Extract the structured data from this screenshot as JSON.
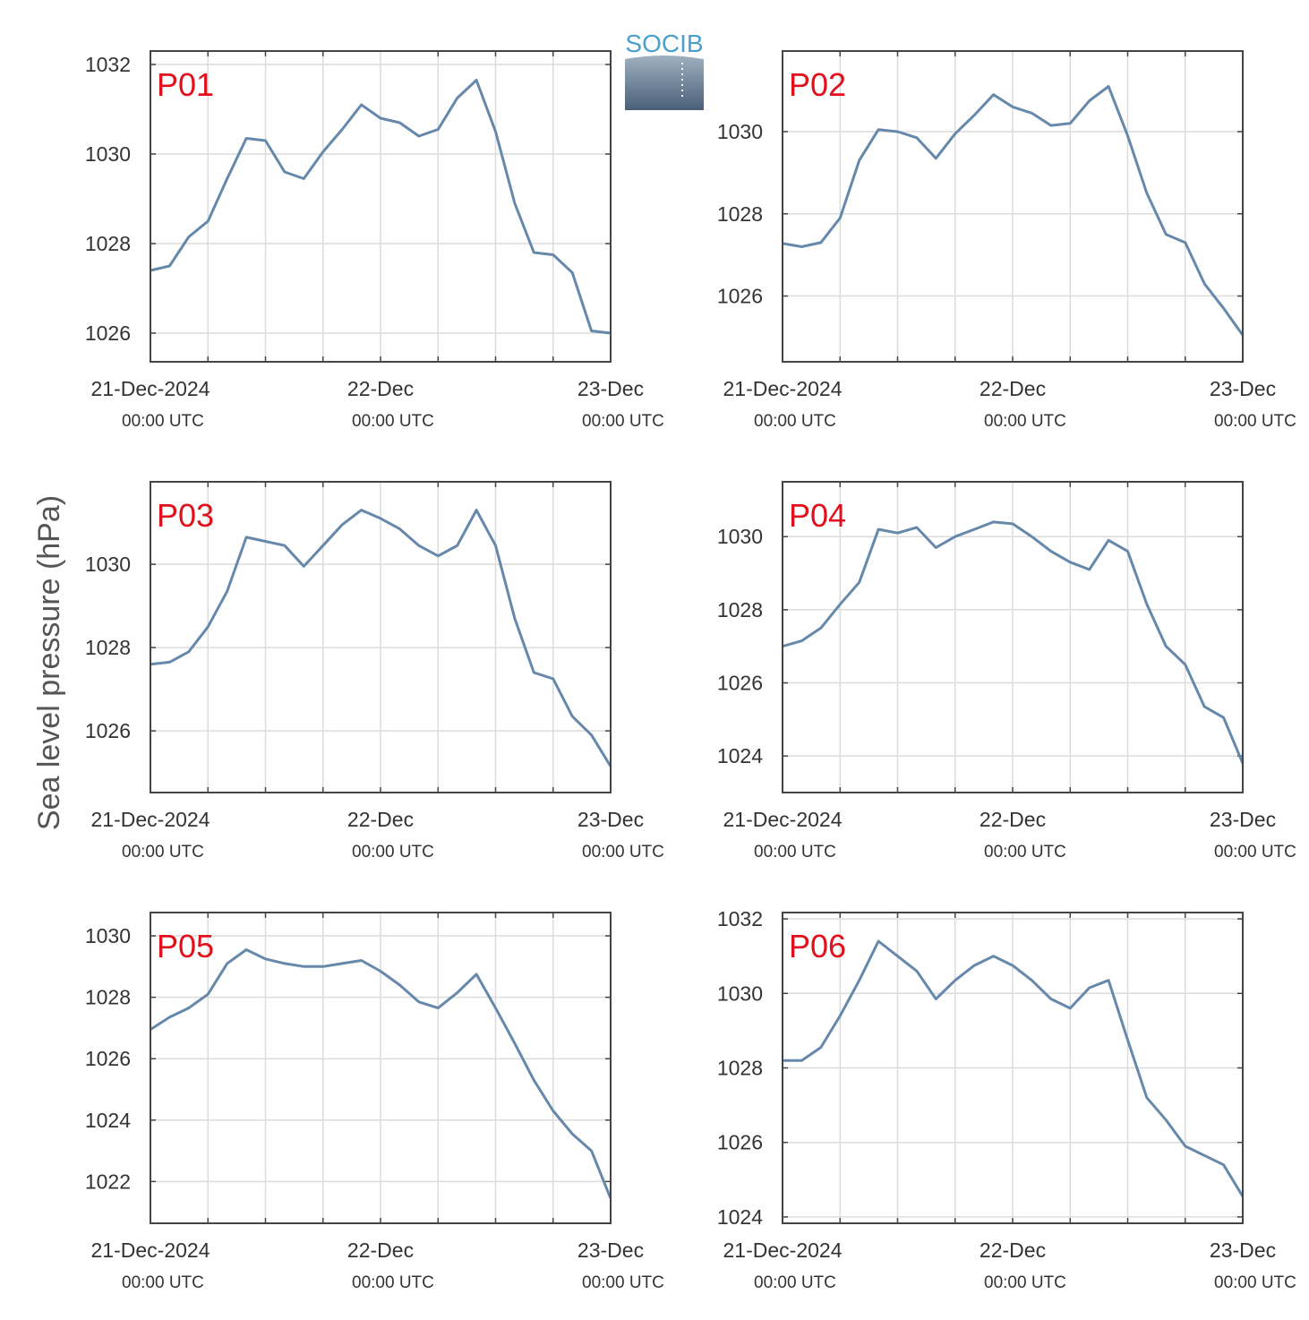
{
  "logo": "SOCIB",
  "ylabel": "Sea level pressure (hPa)",
  "chart_data": [
    {
      "type": "line",
      "title": "P01",
      "color": "#6688aa",
      "grid": true,
      "x": [
        "2024-12-21T00:00",
        "2024-12-21T02:00",
        "2024-12-21T04:00",
        "2024-12-21T06:00",
        "2024-12-21T08:00",
        "2024-12-21T10:00",
        "2024-12-21T12:00",
        "2024-12-21T14:00",
        "2024-12-21T16:00",
        "2024-12-21T18:00",
        "2024-12-21T20:00",
        "2024-12-21T22:00",
        "2024-12-22T00:00",
        "2024-12-22T02:00",
        "2024-12-22T04:00",
        "2024-12-22T06:00",
        "2024-12-22T08:00",
        "2024-12-22T10:00",
        "2024-12-22T12:00",
        "2024-12-22T14:00",
        "2024-12-22T16:00",
        "2024-12-22T18:00",
        "2024-12-22T20:00",
        "2024-12-22T22:00",
        "2024-12-23T00:00"
      ],
      "values": [
        1027.4,
        1027.5,
        1028.15,
        1028.5,
        1029.45,
        1030.35,
        1030.3,
        1029.6,
        1029.45,
        1030.05,
        1030.55,
        1031.1,
        1030.8,
        1030.7,
        1030.4,
        1030.55,
        1031.25,
        1031.65,
        1030.5,
        1028.9,
        1027.8,
        1027.75,
        1027.35,
        1026.05,
        1026.0
      ],
      "xlim": [
        "2024-12-21T00:00",
        "2024-12-23T00:00"
      ],
      "xticks": [
        {
          "value": "2024-12-21T00:00",
          "label": "21-Dec-2024",
          "time_label": "00:00 UTC"
        },
        {
          "value": "2024-12-22T00:00",
          "label": "22-Dec",
          "time_label": "00:00 UTC"
        },
        {
          "value": "2024-12-23T00:00",
          "label": "23-Dec",
          "time_label": "00:00 UTC"
        }
      ],
      "xgrid": [
        "2024-12-21T06:00",
        "2024-12-21T12:00",
        "2024-12-21T18:00",
        "2024-12-22T06:00",
        "2024-12-22T12:00",
        "2024-12-22T18:00"
      ],
      "ylim": [
        1025.36,
        1032.3
      ],
      "yticks": [
        1026,
        1028,
        1030,
        1032
      ]
    },
    {
      "type": "line",
      "title": "P02",
      "color": "#6688aa",
      "grid": true,
      "x": [
        "2024-12-21T00:00",
        "2024-12-21T02:00",
        "2024-12-21T04:00",
        "2024-12-21T06:00",
        "2024-12-21T08:00",
        "2024-12-21T10:00",
        "2024-12-21T12:00",
        "2024-12-21T14:00",
        "2024-12-21T16:00",
        "2024-12-21T18:00",
        "2024-12-21T20:00",
        "2024-12-21T22:00",
        "2024-12-22T00:00",
        "2024-12-22T02:00",
        "2024-12-22T04:00",
        "2024-12-22T06:00",
        "2024-12-22T08:00",
        "2024-12-22T10:00",
        "2024-12-22T12:00",
        "2024-12-22T14:00",
        "2024-12-22T16:00",
        "2024-12-22T18:00",
        "2024-12-22T20:00",
        "2024-12-22T22:00",
        "2024-12-23T00:00"
      ],
      "values": [
        1027.28,
        1027.2,
        1027.3,
        1027.9,
        1029.3,
        1030.05,
        1030.0,
        1029.85,
        1029.35,
        1029.95,
        1030.4,
        1030.9,
        1030.6,
        1030.45,
        1030.15,
        1030.2,
        1030.75,
        1031.1,
        1029.9,
        1028.5,
        1027.5,
        1027.3,
        1026.3,
        1025.7,
        1025.05
      ],
      "xlim": [
        "2024-12-21T00:00",
        "2024-12-23T00:00"
      ],
      "xticks": [
        {
          "value": "2024-12-21T00:00",
          "label": "21-Dec-2024",
          "time_label": "00:00 UTC"
        },
        {
          "value": "2024-12-22T00:00",
          "label": "22-Dec",
          "time_label": "00:00 UTC"
        },
        {
          "value": "2024-12-23T00:00",
          "label": "23-Dec",
          "time_label": "00:00 UTC"
        }
      ],
      "xgrid": [
        "2024-12-21T06:00",
        "2024-12-21T12:00",
        "2024-12-21T18:00",
        "2024-12-22T06:00",
        "2024-12-22T12:00",
        "2024-12-22T18:00"
      ],
      "ylim": [
        1024.4,
        1031.96
      ],
      "yticks": [
        1026,
        1028,
        1030
      ]
    },
    {
      "type": "line",
      "title": "P03",
      "color": "#6688aa",
      "grid": true,
      "x": [
        "2024-12-21T00:00",
        "2024-12-21T02:00",
        "2024-12-21T04:00",
        "2024-12-21T06:00",
        "2024-12-21T08:00",
        "2024-12-21T10:00",
        "2024-12-21T12:00",
        "2024-12-21T14:00",
        "2024-12-21T16:00",
        "2024-12-21T18:00",
        "2024-12-21T20:00",
        "2024-12-21T22:00",
        "2024-12-22T00:00",
        "2024-12-22T02:00",
        "2024-12-22T04:00",
        "2024-12-22T06:00",
        "2024-12-22T08:00",
        "2024-12-22T10:00",
        "2024-12-22T12:00",
        "2024-12-22T14:00",
        "2024-12-22T16:00",
        "2024-12-22T18:00",
        "2024-12-22T20:00",
        "2024-12-22T22:00",
        "2024-12-23T00:00"
      ],
      "values": [
        1027.6,
        1027.65,
        1027.9,
        1028.5,
        1029.35,
        1030.65,
        1030.55,
        1030.45,
        1029.95,
        1030.45,
        1030.95,
        1031.3,
        1031.1,
        1030.85,
        1030.45,
        1030.2,
        1030.45,
        1031.3,
        1030.45,
        1028.7,
        1027.4,
        1027.25,
        1026.35,
        1025.9,
        1025.15
      ],
      "xlim": [
        "2024-12-21T00:00",
        "2024-12-23T00:00"
      ],
      "xticks": [
        {
          "value": "2024-12-21T00:00",
          "label": "21-Dec-2024",
          "time_label": "00:00 UTC"
        },
        {
          "value": "2024-12-22T00:00",
          "label": "22-Dec",
          "time_label": "00:00 UTC"
        },
        {
          "value": "2024-12-23T00:00",
          "label": "23-Dec",
          "time_label": "00:00 UTC"
        }
      ],
      "xgrid": [
        "2024-12-21T06:00",
        "2024-12-21T12:00",
        "2024-12-21T18:00",
        "2024-12-22T06:00",
        "2024-12-22T12:00",
        "2024-12-22T18:00"
      ],
      "ylim": [
        1024.52,
        1031.98
      ],
      "yticks": [
        1026,
        1028,
        1030
      ]
    },
    {
      "type": "line",
      "title": "P04",
      "color": "#6688aa",
      "grid": true,
      "x": [
        "2024-12-21T00:00",
        "2024-12-21T02:00",
        "2024-12-21T04:00",
        "2024-12-21T06:00",
        "2024-12-21T08:00",
        "2024-12-21T10:00",
        "2024-12-21T12:00",
        "2024-12-21T14:00",
        "2024-12-21T16:00",
        "2024-12-21T18:00",
        "2024-12-21T20:00",
        "2024-12-21T22:00",
        "2024-12-22T00:00",
        "2024-12-22T02:00",
        "2024-12-22T04:00",
        "2024-12-22T06:00",
        "2024-12-22T08:00",
        "2024-12-22T10:00",
        "2024-12-22T12:00",
        "2024-12-22T14:00",
        "2024-12-22T16:00",
        "2024-12-22T18:00",
        "2024-12-22T20:00",
        "2024-12-22T22:00",
        "2024-12-23T00:00"
      ],
      "values": [
        1027.0,
        1027.15,
        1027.5,
        1028.15,
        1028.75,
        1030.2,
        1030.1,
        1030.25,
        1029.7,
        1030.0,
        1030.2,
        1030.4,
        1030.35,
        1030.0,
        1029.6,
        1029.3,
        1029.1,
        1029.9,
        1029.6,
        1028.15,
        1027.0,
        1026.5,
        1025.35,
        1025.05,
        1023.8
      ],
      "xlim": [
        "2024-12-21T00:00",
        "2024-12-23T00:00"
      ],
      "xticks": [
        {
          "value": "2024-12-21T00:00",
          "label": "21-Dec-2024",
          "time_label": "00:00 UTC"
        },
        {
          "value": "2024-12-22T00:00",
          "label": "22-Dec",
          "time_label": "00:00 UTC"
        },
        {
          "value": "2024-12-23T00:00",
          "label": "23-Dec",
          "time_label": "00:00 UTC"
        }
      ],
      "xgrid": [
        "2024-12-21T06:00",
        "2024-12-21T12:00",
        "2024-12-21T18:00",
        "2024-12-22T06:00",
        "2024-12-22T12:00",
        "2024-12-22T18:00"
      ],
      "ylim": [
        1023.0,
        1031.5
      ],
      "yticks": [
        1024,
        1026,
        1028,
        1030
      ]
    },
    {
      "type": "line",
      "title": "P05",
      "color": "#6688aa",
      "grid": true,
      "x": [
        "2024-12-21T00:00",
        "2024-12-21T02:00",
        "2024-12-21T04:00",
        "2024-12-21T06:00",
        "2024-12-21T08:00",
        "2024-12-21T10:00",
        "2024-12-21T12:00",
        "2024-12-21T14:00",
        "2024-12-21T16:00",
        "2024-12-21T18:00",
        "2024-12-21T20:00",
        "2024-12-21T22:00",
        "2024-12-22T00:00",
        "2024-12-22T02:00",
        "2024-12-22T04:00",
        "2024-12-22T06:00",
        "2024-12-22T08:00",
        "2024-12-22T10:00",
        "2024-12-22T12:00",
        "2024-12-22T14:00",
        "2024-12-22T16:00",
        "2024-12-22T18:00",
        "2024-12-22T20:00",
        "2024-12-22T22:00",
        "2024-12-23T00:00"
      ],
      "values": [
        1026.95,
        1027.35,
        1027.65,
        1028.1,
        1029.1,
        1029.55,
        1029.25,
        1029.1,
        1029.0,
        1029.0,
        1029.1,
        1029.2,
        1028.85,
        1028.4,
        1027.85,
        1027.65,
        1028.15,
        1028.75,
        1027.65,
        1026.5,
        1025.3,
        1024.3,
        1023.55,
        1023.0,
        1021.45
      ],
      "xlim": [
        "2024-12-21T00:00",
        "2024-12-23T00:00"
      ],
      "xticks": [
        {
          "value": "2024-12-21T00:00",
          "label": "21-Dec-2024",
          "time_label": "00:00 UTC"
        },
        {
          "value": "2024-12-22T00:00",
          "label": "22-Dec",
          "time_label": "00:00 UTC"
        },
        {
          "value": "2024-12-23T00:00",
          "label": "23-Dec",
          "time_label": "00:00 UTC"
        }
      ],
      "xgrid": [
        "2024-12-21T06:00",
        "2024-12-21T12:00",
        "2024-12-21T18:00",
        "2024-12-22T06:00",
        "2024-12-22T12:00",
        "2024-12-22T18:00"
      ],
      "ylim": [
        1020.64,
        1030.76
      ],
      "yticks": [
        1022,
        1024,
        1026,
        1028,
        1030
      ]
    },
    {
      "type": "line",
      "title": "P06",
      "color": "#6688aa",
      "grid": true,
      "x": [
        "2024-12-21T00:00",
        "2024-12-21T02:00",
        "2024-12-21T04:00",
        "2024-12-21T06:00",
        "2024-12-21T08:00",
        "2024-12-21T10:00",
        "2024-12-21T12:00",
        "2024-12-21T14:00",
        "2024-12-21T16:00",
        "2024-12-21T18:00",
        "2024-12-21T20:00",
        "2024-12-21T22:00",
        "2024-12-22T00:00",
        "2024-12-22T02:00",
        "2024-12-22T04:00",
        "2024-12-22T06:00",
        "2024-12-22T08:00",
        "2024-12-22T10:00",
        "2024-12-22T12:00",
        "2024-12-22T14:00",
        "2024-12-22T16:00",
        "2024-12-22T18:00",
        "2024-12-22T20:00",
        "2024-12-22T22:00",
        "2024-12-23T00:00"
      ],
      "values": [
        1028.2,
        1028.2,
        1028.55,
        1029.4,
        1030.35,
        1031.4,
        1031.0,
        1030.6,
        1029.85,
        1030.35,
        1030.75,
        1031.0,
        1030.75,
        1030.35,
        1029.85,
        1029.6,
        1030.15,
        1030.35,
        1028.75,
        1027.2,
        1026.6,
        1025.9,
        1025.65,
        1025.4,
        1024.55
      ],
      "xlim": [
        "2024-12-21T00:00",
        "2024-12-23T00:00"
      ],
      "xticks": [
        {
          "value": "2024-12-21T00:00",
          "label": "21-Dec-2024",
          "time_label": "00:00 UTC"
        },
        {
          "value": "2024-12-22T00:00",
          "label": "22-Dec",
          "time_label": "00:00 UTC"
        },
        {
          "value": "2024-12-23T00:00",
          "label": "23-Dec",
          "time_label": "00:00 UTC"
        }
      ],
      "xgrid": [
        "2024-12-21T06:00",
        "2024-12-21T12:00",
        "2024-12-21T18:00",
        "2024-12-22T06:00",
        "2024-12-22T12:00",
        "2024-12-22T18:00"
      ],
      "ylim": [
        1023.83,
        1032.17
      ],
      "yticks": [
        1024,
        1026,
        1028,
        1030,
        1032
      ]
    }
  ]
}
